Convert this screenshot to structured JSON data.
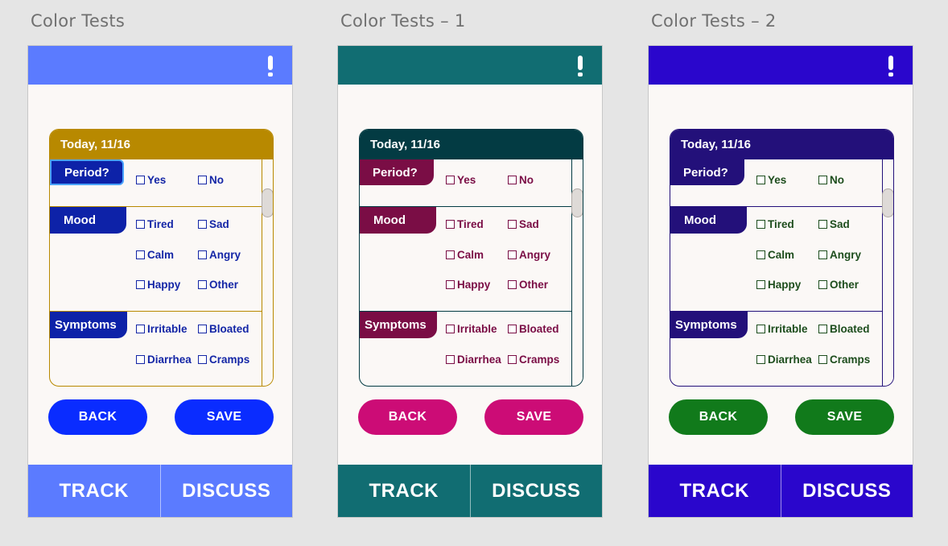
{
  "artboards": [
    {
      "title": "Color Tests",
      "colors": {
        "topbar": "#5b7bff",
        "card_accent": "#b88900",
        "tag_bg": "#0d22a8",
        "check_text": "#1426a6",
        "button": "#0a2cff",
        "nav": "#5b7bff"
      }
    },
    {
      "title": "Color Tests – 1",
      "colors": {
        "topbar": "#116d72",
        "card_accent": "#033b43",
        "tag_bg": "#7a0d45",
        "check_text": "#7a0d45",
        "button": "#cc0c76",
        "nav": "#116d72"
      }
    },
    {
      "title": "Color Tests – 2",
      "colors": {
        "topbar": "#2a06cc",
        "card_accent": "#23107a",
        "tag_bg": "#23107a",
        "check_text": "#1d4d1d",
        "button": "#117a1b",
        "nav": "#2a06cc"
      }
    }
  ],
  "card": {
    "date": "Today, 11/16",
    "period": {
      "label": "Period?",
      "options": [
        "Yes",
        "No"
      ]
    },
    "mood": {
      "label": "Mood",
      "options": [
        "Tired",
        "Sad",
        "Calm",
        "Angry",
        "Happy",
        "Other"
      ]
    },
    "symptoms": {
      "label": "Symptoms",
      "options": [
        "Irritable",
        "Bloated",
        "Diarrhea",
        "Cramps"
      ]
    }
  },
  "buttons": {
    "back": "BACK",
    "save": "SAVE"
  },
  "nav": {
    "track": "TRACK",
    "discuss": "DISCUSS"
  },
  "icons": {
    "alert": "exclamation-icon",
    "checkbox": "checkbox-icon"
  }
}
